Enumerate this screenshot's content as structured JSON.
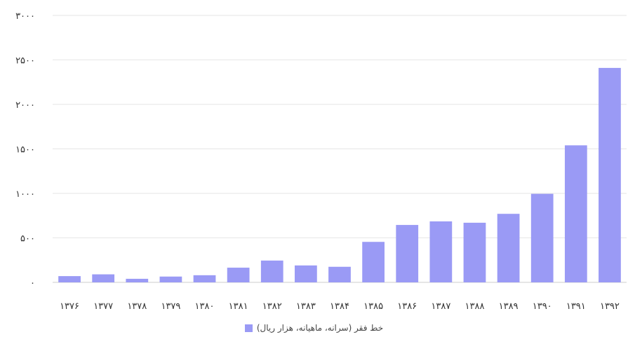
{
  "chart_data": {
    "type": "bar",
    "categories": [
      "۱۳۷۶",
      "۱۳۷۷",
      "۱۳۷۸",
      "۱۳۷۹",
      "۱۳۸۰",
      "۱۳۸۱",
      "۱۳۸۲",
      "۱۳۸۳",
      "۱۳۸۴",
      "۱۳۸۵",
      "۱۳۸۶",
      "۱۳۸۷",
      "۱۳۸۸",
      "۱۳۸۹",
      "۱۳۹۰",
      "۱۳۹۱",
      "۱۳۹۲"
    ],
    "series": [
      {
        "name": "خط فقر (سرانه، ماهیانه، هزار ریال)",
        "values": [
          70,
          90,
          40,
          65,
          80,
          165,
          245,
          190,
          175,
          455,
          645,
          685,
          670,
          770,
          995,
          1540,
          2410
        ],
        "color": "#9a9af5"
      }
    ],
    "yticks": [
      "۰",
      "۵۰۰",
      "۱۰۰۰",
      "۱۵۰۰",
      "۲۰۰۰",
      "۲۵۰۰",
      "۳۰۰۰"
    ],
    "ylim": [
      0,
      3000
    ],
    "grid": true,
    "legend_position": "bottom"
  }
}
